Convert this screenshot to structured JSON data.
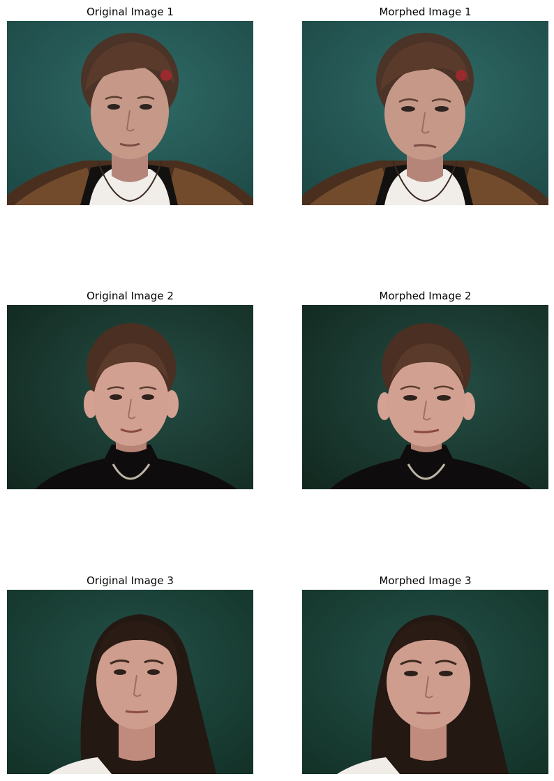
{
  "figure": {
    "panels": [
      {
        "title": "Original Image 1",
        "subject": "woman with short brown hair, hair clip, dark top with white undershirt and necklace, teal background"
      },
      {
        "title": "Morphed Image 1",
        "subject": "warped version of image 1 face"
      },
      {
        "title": "Original Image 2",
        "subject": "woman with hair pulled back, black turtleneck and necklace, dark green background"
      },
      {
        "title": "Morphed Image 2",
        "subject": "warped version of image 2 face"
      },
      {
        "title": "Original Image 3",
        "subject": "woman with long dark hair, dark green background"
      },
      {
        "title": "Morphed Image 3",
        "subject": "warped version of image 3 face"
      }
    ]
  }
}
